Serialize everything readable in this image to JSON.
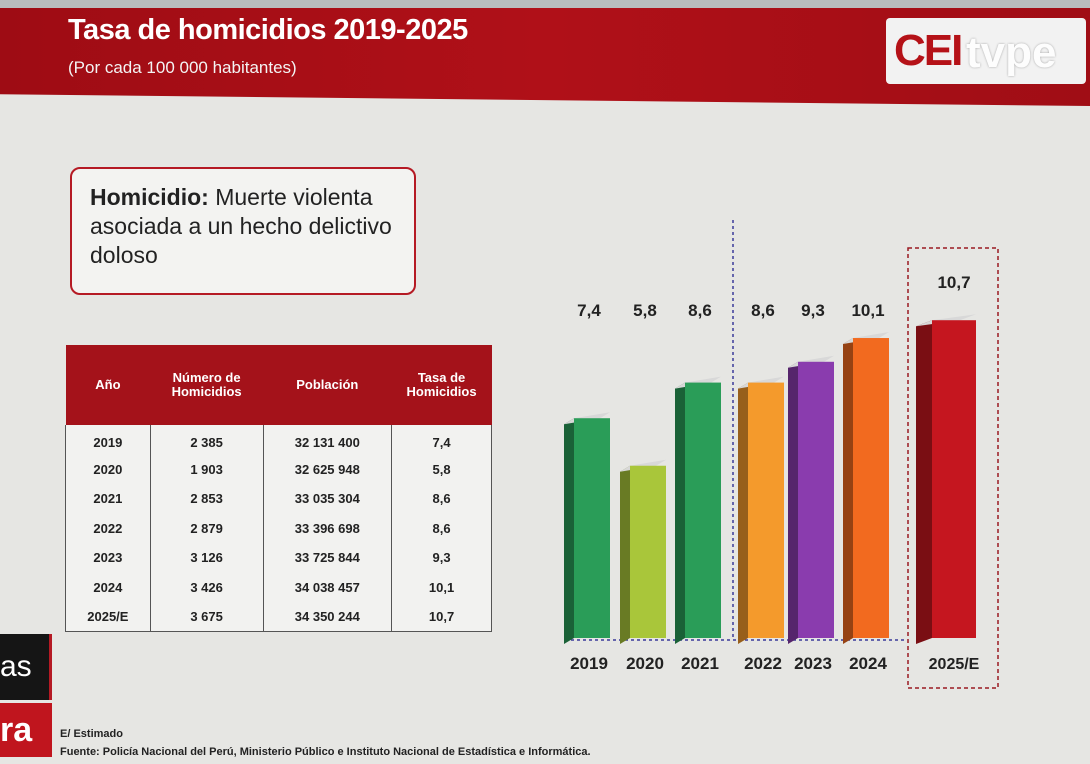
{
  "header": {
    "title": "Tasa de homicidios 2019-2025",
    "subtitle": "(Por cada 100 000 habitantes)",
    "logo": "CEI",
    "logo_overlay": "tvpe"
  },
  "definition": {
    "term": "Homicidio:",
    "text": " Muerte violenta asociada a un hecho delictivo doloso"
  },
  "table": {
    "headers": [
      "Año",
      "Número de Homicidios",
      "Población",
      "Tasa de Homicidios"
    ],
    "rows": [
      [
        "2019",
        "2 385",
        "32 131 400",
        "7,4"
      ],
      [
        "2020",
        "1 903",
        "32 625 948",
        "5,8"
      ],
      [
        "2021",
        "2 853",
        "33 035 304",
        "8,6"
      ],
      [
        "2022",
        "2 879",
        "33 396 698",
        "8,6"
      ],
      [
        "2023",
        "3 126",
        "33 725 844",
        "9,3"
      ],
      [
        "2024",
        "3 426",
        "34 038 457",
        "10,1"
      ],
      [
        "2025/E",
        "3 675",
        "34 350 244",
        "10,7"
      ]
    ]
  },
  "ticker": {
    "line1": "as",
    "line2": "ra"
  },
  "footnote": "E/ Estimado",
  "source": "Fuente: Policía Nacional del Perú, Ministerio Público e Instituto Nacional de Estadística e Informática.",
  "chart_data": {
    "type": "bar",
    "title": "Tasa de homicidios 2019-2025",
    "ylabel": "Por cada 100 000 habitantes",
    "categories": [
      "2019",
      "2020",
      "2021",
      "2022",
      "2023",
      "2024",
      "2025/E"
    ],
    "values": [
      7.4,
      5.8,
      8.6,
      8.6,
      9.3,
      10.1,
      10.7
    ],
    "value_labels": [
      "7,4",
      "5,8",
      "8,6",
      "8,6",
      "9,3",
      "10,1",
      "10,7"
    ],
    "colors": [
      "#2a9d58",
      "#a9c63a",
      "#2a9d58",
      "#f49a2c",
      "#8a3cae",
      "#f26a1f",
      "#c5161f"
    ],
    "ylim": [
      0,
      11
    ],
    "grid": false
  }
}
